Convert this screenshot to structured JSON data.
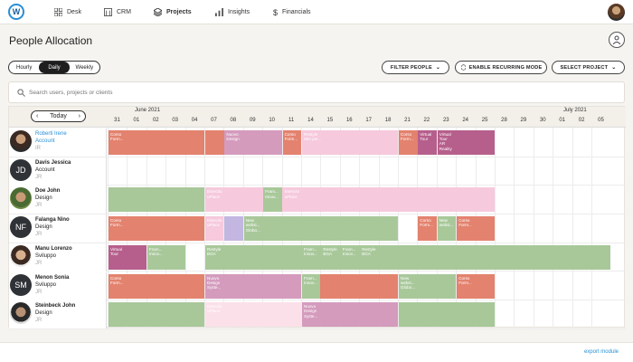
{
  "nav": {
    "logo": "W",
    "items": [
      "Desk",
      "CRM",
      "Projects",
      "Insights",
      "Financials"
    ]
  },
  "page": {
    "title": "People Allocation"
  },
  "view_toggle": {
    "options": [
      "Hourly",
      "Daily",
      "Weekly"
    ],
    "selected": "Daily"
  },
  "actions": {
    "filter": "FILTER PEOPLE",
    "recurring": "ENABLE RECURRING MODE",
    "project": "SELECT PROJECT"
  },
  "search": {
    "placeholder": "Search users, projects or clients"
  },
  "calendar": {
    "today_label": "Today",
    "month1": "June 2021",
    "month2": "July 2021",
    "days": [
      "31",
      "01",
      "02",
      "03",
      "04",
      "07",
      "08",
      "09",
      "10",
      "11",
      "14",
      "15",
      "16",
      "17",
      "18",
      "21",
      "22",
      "23",
      "24",
      "25",
      "28",
      "29",
      "30",
      "01",
      "02",
      "05"
    ]
  },
  "people": [
    {
      "name": "Roberti Irene",
      "role": "Account",
      "code": "IR",
      "initials": "",
      "highlight": true
    },
    {
      "name": "Davis Jessica",
      "role": "Account",
      "code": "JR",
      "initials": "JD"
    },
    {
      "name": "Doe John",
      "role": "Design",
      "code": "JR",
      "initials": ""
    },
    {
      "name": "Falanga Nino",
      "role": "Design",
      "code": "JR",
      "initials": "NF"
    },
    {
      "name": "Manu Lorenzo",
      "role": "Sviluppo",
      "code": "JR",
      "initials": ""
    },
    {
      "name": "Menon Sonia",
      "role": "Sviluppo",
      "code": "JR",
      "initials": "SM"
    },
    {
      "name": "Steinbeck John",
      "role": "Design",
      "code": "JR",
      "initials": ""
    }
  ],
  "colors": {
    "red": "#e3826e",
    "mauve": "#d49bbd",
    "pink": "#f6c9dc",
    "green": "#a8c89a",
    "purple": "#b65f8c",
    "lavender": "#c3b6e0",
    "lightpink": "#fbe0ea"
  },
  "bars": [
    [
      {
        "d": 0,
        "len": 5,
        "c": "red",
        "t": "Corso\nForm..."
      },
      {
        "d": 5,
        "len": 4,
        "c": "red",
        "t": ""
      },
      {
        "d": 6,
        "len": 3,
        "c": "mauve",
        "t": "Nuovo\nDesign"
      },
      {
        "d": 9,
        "len": 1,
        "c": "red",
        "t": "Corso\nForm..."
      },
      {
        "d": 10,
        "len": 5,
        "c": "pink",
        "t": "Restyle\nSito per..."
      },
      {
        "d": 15,
        "len": 2,
        "c": "red",
        "t": "Corso\nForm..."
      },
      {
        "d": 16,
        "len": 1,
        "c": "purple",
        "t": "Virtual\nTour"
      },
      {
        "d": 17,
        "len": 3,
        "c": "purple",
        "t": "Virtual\nTour\nAR\nReality"
      }
    ],
    [],
    [
      {
        "d": 0,
        "len": 5,
        "c": "green",
        "t": ""
      },
      {
        "d": 5,
        "len": 15,
        "c": "pink",
        "t": "Esercito\nuPlace"
      },
      {
        "d": 9,
        "len": 1,
        "c": "pink",
        "t": "Esercito\nuPlace"
      },
      {
        "d": 8,
        "len": 1,
        "c": "green",
        "t": "Fram...\nInnov..."
      }
    ],
    [
      {
        "d": 0,
        "len": 5,
        "c": "red",
        "t": "Corso\nForm..."
      },
      {
        "d": 5,
        "len": 1,
        "c": "pink",
        "t": "Esercito\nuPlace"
      },
      {
        "d": 6,
        "len": 1,
        "c": "lavender",
        "t": ""
      },
      {
        "d": 7,
        "len": 8,
        "c": "green",
        "t": "New\nwebsi...\nGlobo..."
      },
      {
        "d": 16,
        "len": 1,
        "c": "red",
        "t": "Corso\nForm..."
      },
      {
        "d": 17,
        "len": 1,
        "c": "green",
        "t": "New\nwebsi..."
      },
      {
        "d": 18,
        "len": 2,
        "c": "red",
        "t": "Corso\nForm..."
      }
    ],
    [
      {
        "d": 0,
        "len": 2,
        "c": "purple",
        "t": "Virtual\nTour"
      },
      {
        "d": 2,
        "len": 2,
        "c": "green",
        "t": "Fram...\nInnov..."
      },
      {
        "d": 5,
        "len": 21,
        "c": "green",
        "t": "Restyle\nBGA"
      },
      {
        "d": 11,
        "len": 2,
        "c": "green",
        "t": "Restyle\nBGA"
      },
      {
        "d": 13,
        "len": 1,
        "c": "green",
        "t": "Restyle\nBGA"
      },
      {
        "d": 10,
        "len": 1,
        "c": "green",
        "t": "Fram...\nInnov..."
      },
      {
        "d": 12,
        "len": 1,
        "c": "green",
        "t": "Fram...\nInnov..."
      }
    ],
    [
      {
        "d": 0,
        "len": 5,
        "c": "red",
        "t": "Corso\nForm..."
      },
      {
        "d": 5,
        "len": 5,
        "c": "mauve",
        "t": "Nuovo\nDesign\nSyste..."
      },
      {
        "d": 10,
        "len": 5,
        "c": "red",
        "t": "Corso\nForm..."
      },
      {
        "d": 10,
        "len": 1,
        "c": "green",
        "t": "Fram...\nInnov..."
      },
      {
        "d": 15,
        "len": 3,
        "c": "green",
        "t": "New\nwebsi...\nGlobo..."
      },
      {
        "d": 18,
        "len": 2,
        "c": "red",
        "t": "Corso\nForm..."
      }
    ],
    [
      {
        "d": 0,
        "len": 5,
        "c": "green",
        "t": ""
      },
      {
        "d": 5,
        "len": 5,
        "c": "lightpink",
        "t": "Esercito\nuPlace"
      },
      {
        "d": 10,
        "len": 5,
        "c": "mauve",
        "t": "Nuovo\nDesign\nSyste..."
      },
      {
        "d": 15,
        "len": 5,
        "c": "green",
        "t": ""
      }
    ]
  ],
  "footer": {
    "export": "export module"
  }
}
